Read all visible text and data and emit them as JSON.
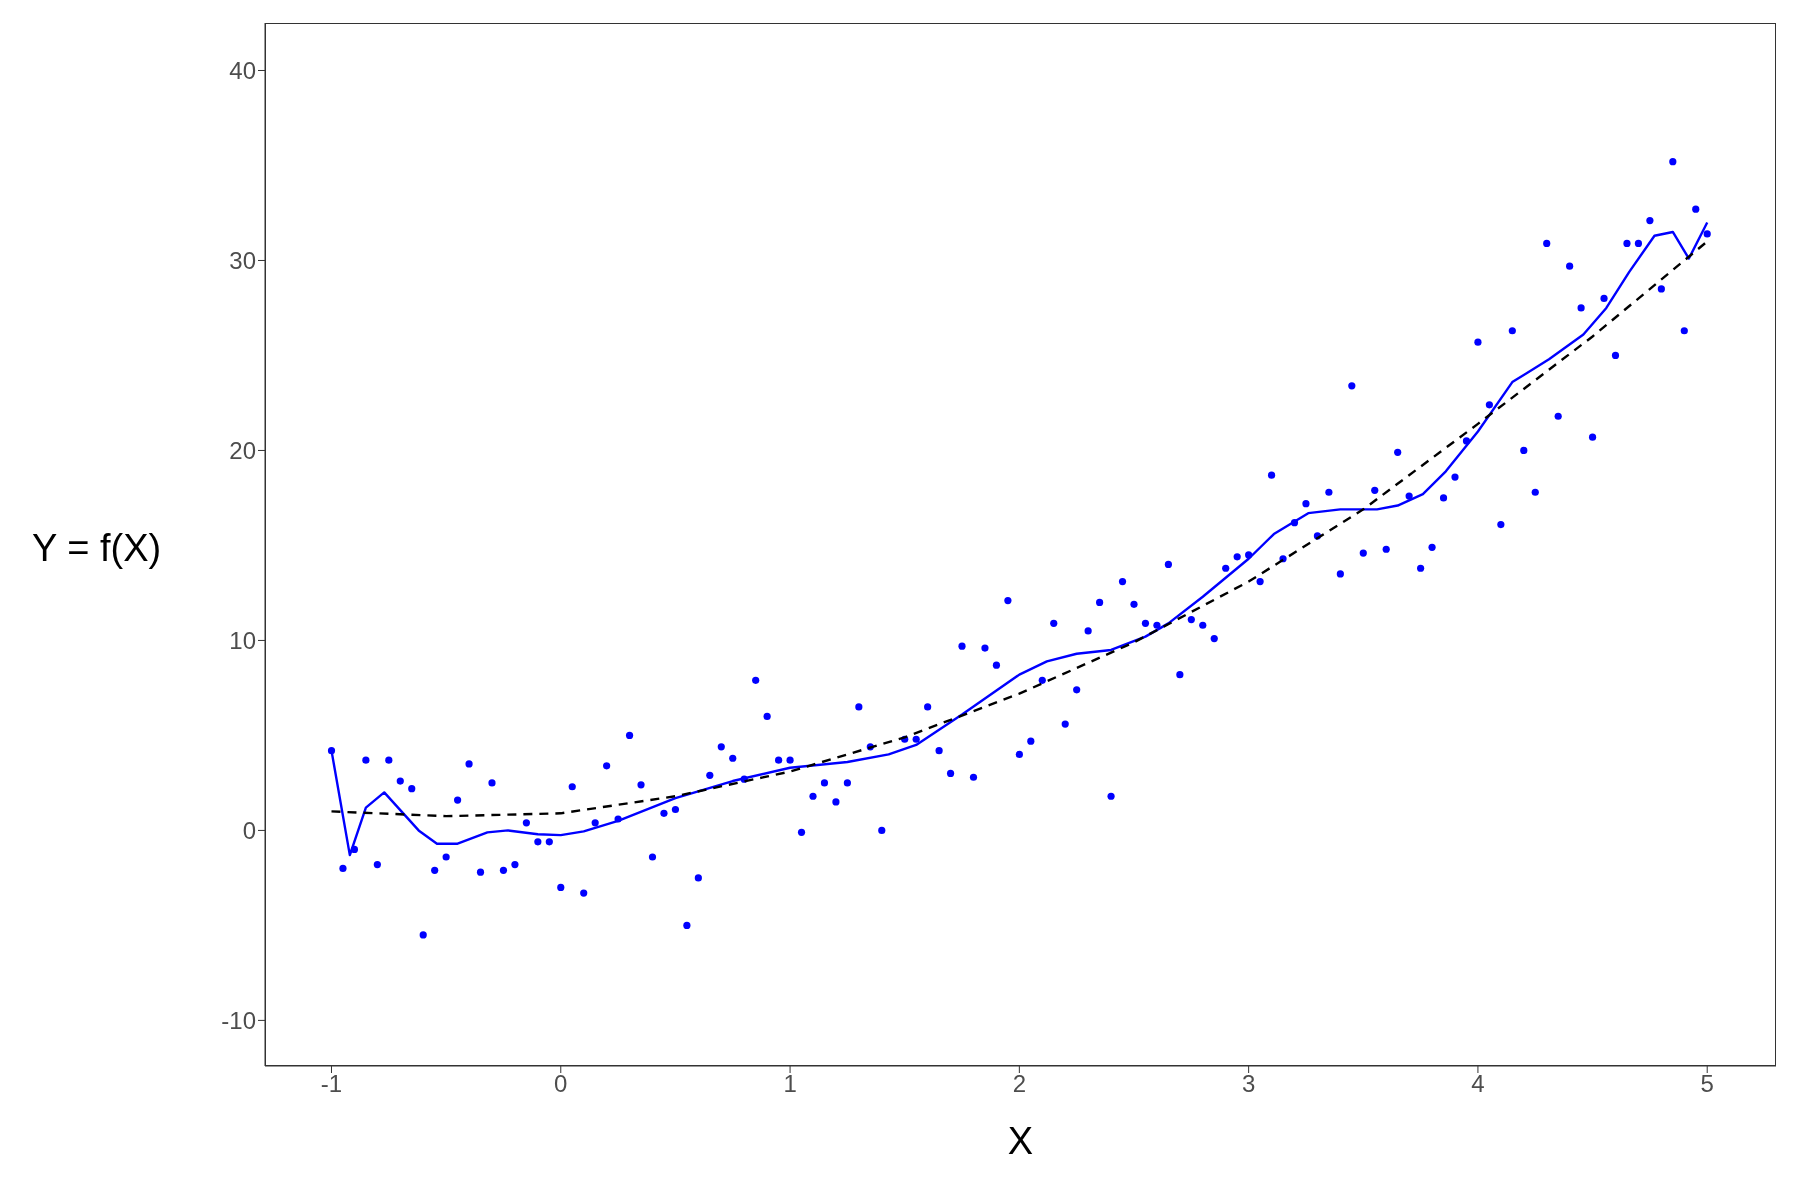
{
  "chart_data": {
    "type": "scatter",
    "xlabel": "X",
    "ylabel": "Y = f(X)",
    "xlim": [
      -1.29,
      5.3
    ],
    "ylim": [
      -12.4,
      42.5
    ],
    "xticks": [
      -1,
      0,
      1,
      2,
      3,
      4,
      5
    ],
    "yticks": [
      -10,
      0,
      10,
      20,
      30,
      40
    ],
    "series": [
      {
        "color": "#0000ff",
        "marker": "circle",
        "x": [
          -1,
          -0.95,
          -0.9,
          -0.85,
          -0.8,
          -0.75,
          -0.7,
          -0.65,
          -0.6,
          -0.55,
          -0.5,
          -0.45,
          -0.4,
          -0.35,
          -0.3,
          -0.25,
          -0.2,
          -0.15,
          -0.1,
          -0.05,
          0,
          0.05,
          0.1,
          0.15,
          0.2,
          0.25,
          0.3,
          0.35,
          0.4,
          0.45,
          0.5,
          0.55,
          0.6,
          0.65,
          0.7,
          0.75,
          0.8,
          0.85,
          0.9,
          0.95,
          1,
          1.05,
          1.1,
          1.15,
          1.2,
          1.25,
          1.3,
          1.35,
          1.4,
          1.5,
          1.55,
          1.6,
          1.65,
          1.7,
          1.75,
          1.8,
          1.85,
          1.9,
          1.95,
          2,
          2.05,
          2.1,
          2.15,
          2.2,
          2.25,
          2.3,
          2.35,
          2.4,
          2.45,
          2.5,
          2.55,
          2.6,
          2.65,
          2.7,
          2.75,
          2.8,
          2.85,
          2.9,
          2.95,
          3,
          3.05,
          3.1,
          3.15,
          3.2,
          3.25,
          3.3,
          3.35,
          3.4,
          3.45,
          3.5,
          3.55,
          3.6,
          3.65,
          3.7,
          3.75,
          3.8,
          3.85,
          3.9,
          3.95,
          4,
          4.05,
          4.1,
          4.15,
          4.2,
          4.25,
          4.3,
          4.35,
          4.4,
          4.45,
          4.5,
          4.55,
          4.6,
          4.65,
          4.7,
          4.75,
          4.8,
          4.85,
          4.9,
          4.95,
          5
        ],
        "values": [
          4.2,
          -2.0,
          -1.0,
          3.7,
          -1.8,
          3.7,
          2.6,
          2.2,
          -5.5,
          -2.1,
          -1.4,
          1.6,
          3.5,
          -2.2,
          2.5,
          -2.1,
          -1.8,
          0.4,
          -0.6,
          -0.6,
          -3.0,
          2.3,
          -3.3,
          0.4,
          3.4,
          0.6,
          5.0,
          2.4,
          -1.4,
          0.9,
          1.1,
          -5.0,
          -2.5,
          2.9,
          4.4,
          3.8,
          2.7,
          7.9,
          6.0,
          3.7,
          3.7,
          -0.1,
          1.8,
          2.5,
          1.5,
          2.5,
          6.5,
          4.4,
          0.0,
          4.8,
          4.8,
          6.5,
          4.2,
          3.0,
          9.7,
          2.8,
          9.6,
          8.7,
          12.1,
          4.0,
          4.7,
          7.9,
          10.9,
          5.6,
          7.4,
          10.5,
          12.0,
          1.8,
          13.1,
          11.9,
          10.9,
          10.8,
          14.0,
          8.2,
          11.1,
          10.8,
          10.1,
          13.8,
          14.4,
          14.5,
          13.1,
          18.7,
          14.3,
          16.2,
          17.2,
          15.5,
          17.8,
          13.5,
          23.4,
          14.6,
          17.9,
          14.8,
          19.9,
          17.6,
          13.8,
          14.9,
          17.5,
          18.6,
          20.5,
          25.7,
          22.4,
          16.1,
          26.3,
          20.0,
          17.8,
          30.9,
          21.8,
          29.7,
          27.5,
          20.7,
          28.0,
          25.0,
          30.9,
          30.9,
          32.1,
          28.5,
          35.2,
          26.3,
          32.7,
          31.4
        ]
      },
      {
        "type": "line",
        "color": "#0000ff",
        "marker": "none",
        "line_style": "solid",
        "x": [
          -1,
          -0.92,
          -0.85,
          -0.77,
          -0.62,
          -0.54,
          -0.45,
          -0.32,
          -0.23,
          -0.1,
          0,
          0.1,
          0.25,
          0.5,
          0.75,
          1,
          1.25,
          1.43,
          1.55,
          1.75,
          2,
          2.12,
          2.25,
          2.4,
          2.55,
          2.65,
          2.8,
          3,
          3.11,
          3.26,
          3.4,
          3.56,
          3.65,
          3.76,
          3.86,
          4,
          4.15,
          4.31,
          4.46,
          4.56,
          4.66,
          4.77,
          4.85,
          4.92,
          5
        ],
        "values": [
          4.2,
          -1.3,
          1.2,
          2.0,
          0,
          -0.7,
          -0.7,
          -0.1,
          0,
          -0.2,
          -0.25,
          -0.05,
          0.5,
          1.7,
          2.6,
          3.3,
          3.6,
          4.0,
          4.5,
          6.1,
          8.2,
          8.9,
          9.3,
          9.5,
          10.2,
          10.9,
          12.3,
          14.3,
          15.6,
          16.7,
          16.9,
          16.9,
          17.1,
          17.7,
          18.9,
          21.0,
          23.6,
          24.8,
          26.1,
          27.5,
          29.4,
          31.3,
          31.5,
          30.1,
          32.0
        ]
      },
      {
        "type": "line",
        "color": "#000000",
        "marker": "none",
        "line_style": "dashed",
        "x": [
          -1,
          -0.5,
          0,
          0.5,
          1,
          1.5,
          2,
          2.5,
          3,
          3.5,
          4,
          4.5,
          5
        ],
        "values": [
          1.0,
          0.75,
          0.9,
          1.8,
          3.1,
          4.9,
          7.2,
          9.9,
          13.1,
          16.9,
          21.4,
          26.0,
          31.0
        ]
      }
    ]
  }
}
